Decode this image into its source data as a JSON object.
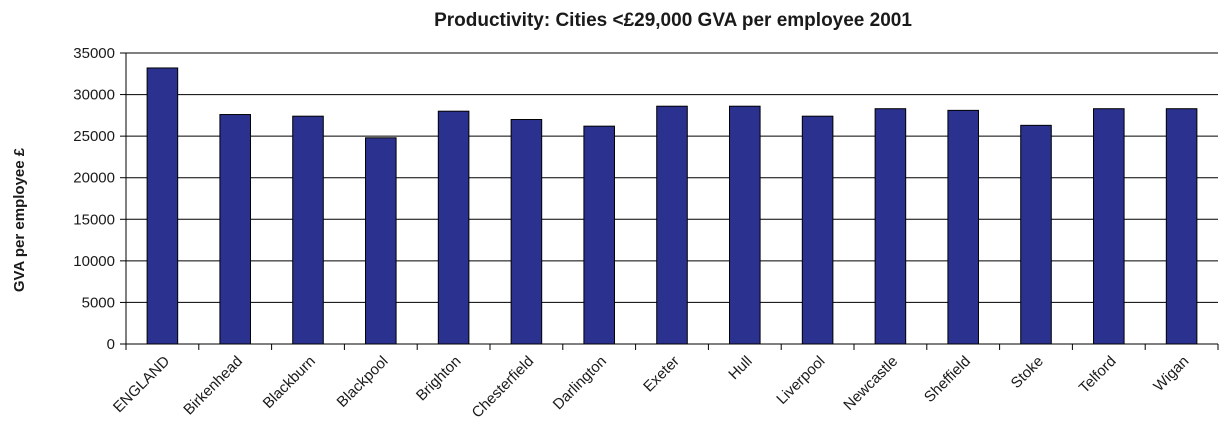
{
  "chart_data": {
    "type": "bar",
    "title": "Productivity: Cities <£29,000 GVA per employee 2001",
    "xlabel": "",
    "ylabel": "GVA per employee £",
    "ylim": [
      0,
      35000
    ],
    "yticks": [
      0,
      5000,
      10000,
      15000,
      20000,
      25000,
      30000,
      35000
    ],
    "grid": true,
    "legend": "none",
    "categories": [
      "ENGLAND",
      "Birkenhead",
      "Blackburn",
      "Blackpool",
      "Brighton",
      "Chesterfield",
      "Darlington",
      "Exeter",
      "Hull",
      "Liverpool",
      "Newcastle",
      "Sheffield",
      "Stoke",
      "Telford",
      "Wigan"
    ],
    "values": [
      33200,
      27600,
      27400,
      24800,
      28000,
      27000,
      26200,
      28600,
      28600,
      27400,
      28300,
      28100,
      26300,
      28300,
      28300
    ],
    "bar_color": "#2b318f"
  }
}
